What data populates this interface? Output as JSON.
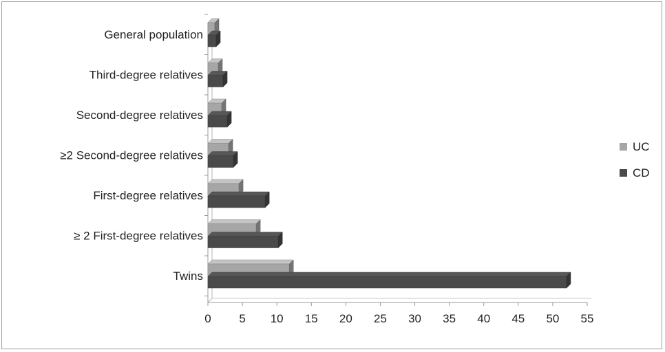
{
  "chart_data": {
    "type": "bar",
    "orientation": "horizontal",
    "categories": [
      "General population",
      "Third-degree relatives",
      "Second-degree relatives",
      "≥2 Second-degree relatives",
      "First-degree relatives",
      "≥ 2 First-degree relatives",
      "Twins"
    ],
    "series": [
      {
        "name": "UC",
        "color": "#a6a6a6",
        "values": [
          1.0,
          1.5,
          2.0,
          3.0,
          4.5,
          7.0,
          11.8
        ]
      },
      {
        "name": "CD",
        "color": "#4a4a4a",
        "values": [
          1.2,
          2.2,
          2.8,
          3.7,
          8.3,
          10.2,
          52.0
        ]
      }
    ],
    "xlim": [
      0,
      55
    ],
    "xticks": [
      "0",
      "5",
      "10",
      "15",
      "20",
      "25",
      "30",
      "35",
      "40",
      "45",
      "50",
      "55"
    ],
    "grid": false,
    "legend": "right",
    "style": "3d"
  }
}
